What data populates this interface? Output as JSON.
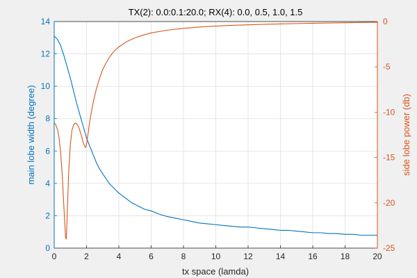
{
  "chart_data": {
    "type": "line",
    "title": "TX(2): 0.0:0.1:20.0;  RX(4): 0.0, 0.5, 1.0, 1.5",
    "xlabel": "tx space (lamda)",
    "xlim": [
      0,
      20
    ],
    "x_ticks": [
      0,
      2,
      4,
      6,
      8,
      10,
      12,
      14,
      16,
      18,
      20
    ],
    "grid": true,
    "left_axis": {
      "label": "main lobe width (degree)",
      "ylim": [
        0,
        14
      ],
      "ticks": [
        0,
        2,
        4,
        6,
        8,
        10,
        12,
        14
      ],
      "color": "#0072BD"
    },
    "right_axis": {
      "label": "side lobe power (db)",
      "ylim": [
        -25,
        0
      ],
      "ticks": [
        0,
        -5,
        -10,
        -15,
        -20,
        -25
      ],
      "color": "#D95319"
    },
    "series": [
      {
        "axis": "left",
        "color": "#0072BD",
        "x": [
          0,
          0.2,
          0.4,
          0.6,
          0.8,
          1.0,
          1.2,
          1.4,
          1.6,
          1.8,
          2.0,
          2.2,
          2.4,
          2.6,
          2.8,
          3.0,
          3.2,
          3.4,
          3.6,
          3.8,
          4.0,
          4.4,
          4.8,
          5.2,
          5.6,
          6.0,
          6.5,
          7.0,
          7.5,
          8.0,
          8.5,
          9.0,
          9.5,
          10.0,
          10.5,
          11.0,
          11.5,
          12.0,
          12.5,
          13.0,
          13.5,
          14.0,
          14.5,
          15.0,
          15.5,
          16.0,
          16.5,
          17.0,
          17.5,
          18.0,
          18.5,
          19.0,
          19.5,
          20.0
        ],
        "y": [
          13.1,
          12.9,
          12.5,
          11.9,
          11.2,
          10.5,
          9.7,
          8.9,
          8.2,
          7.5,
          6.8,
          6.3,
          5.8,
          5.3,
          4.9,
          4.6,
          4.3,
          4.0,
          3.8,
          3.6,
          3.4,
          3.1,
          2.8,
          2.6,
          2.4,
          2.3,
          2.1,
          1.95,
          1.85,
          1.75,
          1.65,
          1.55,
          1.5,
          1.45,
          1.4,
          1.35,
          1.3,
          1.3,
          1.25,
          1.2,
          1.15,
          1.1,
          1.1,
          1.05,
          1.0,
          0.95,
          0.95,
          0.9,
          0.9,
          0.85,
          0.85,
          0.8,
          0.8,
          0.8
        ]
      },
      {
        "axis": "right",
        "color": "#D95319",
        "x": [
          0,
          0.1,
          0.2,
          0.3,
          0.4,
          0.5,
          0.6,
          0.7,
          0.75,
          0.8,
          0.9,
          1.0,
          1.1,
          1.2,
          1.3,
          1.4,
          1.5,
          1.6,
          1.7,
          1.8,
          1.9,
          1.95,
          2.0,
          2.1,
          2.2,
          2.4,
          2.6,
          2.8,
          3.0,
          3.2,
          3.4,
          3.6,
          3.8,
          4.0,
          4.5,
          5.0,
          5.5,
          6.0,
          7.0,
          8.0,
          9.0,
          10.0,
          11.0,
          12.0,
          13.0,
          14.0,
          15.0,
          16.0,
          17.0,
          18.0,
          19.0,
          20.0
        ],
        "y": [
          -11.2,
          -11.4,
          -11.9,
          -12.8,
          -14.5,
          -17.0,
          -20.5,
          -23.8,
          -24.0,
          -21.5,
          -16.5,
          -13.5,
          -12.0,
          -11.4,
          -11.2,
          -11.3,
          -11.6,
          -12.1,
          -12.7,
          -13.4,
          -13.8,
          -13.9,
          -13.5,
          -12.3,
          -11.0,
          -9.0,
          -7.5,
          -6.3,
          -5.3,
          -4.6,
          -4.0,
          -3.5,
          -3.1,
          -2.8,
          -2.2,
          -1.8,
          -1.5,
          -1.25,
          -0.95,
          -0.75,
          -0.6,
          -0.5,
          -0.42,
          -0.36,
          -0.3,
          -0.26,
          -0.22,
          -0.19,
          -0.16,
          -0.13,
          -0.1,
          -0.08
        ]
      }
    ]
  }
}
